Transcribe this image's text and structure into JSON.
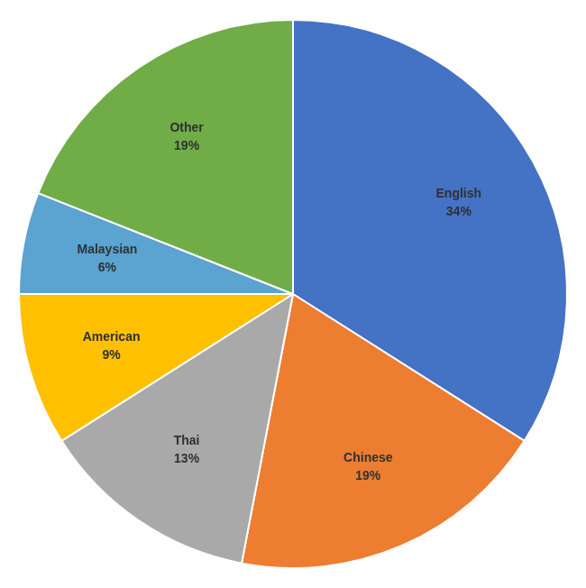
{
  "chart_data": {
    "type": "pie",
    "categories": [
      "English",
      "Chinese",
      "Thai",
      "American",
      "Malaysian",
      "Other"
    ],
    "values": [
      34,
      19,
      13,
      9,
      6,
      19
    ],
    "value_labels": [
      "34%",
      "19%",
      "13%",
      "9%",
      "6%",
      "19%"
    ],
    "colors": [
      "#4472C4",
      "#ED7D31",
      "#A9A9A9",
      "#FFC000",
      "#5BA3D0",
      "#70AD47"
    ],
    "data_labels": true,
    "legend": false
  }
}
